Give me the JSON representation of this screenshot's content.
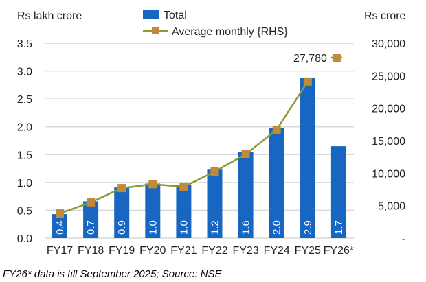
{
  "chart_data": {
    "type": "bar+line",
    "categories": [
      "FY17",
      "FY18",
      "FY19",
      "FY20",
      "FY21",
      "FY22",
      "FY23",
      "FY24",
      "FY25",
      "FY26*"
    ],
    "left_axis": {
      "label": "Rs lakh crore",
      "range": [
        0,
        3.5
      ],
      "ticks": [
        "0.0",
        "0.5",
        "1.0",
        "1.5",
        "2.0",
        "2.5",
        "3.0",
        "3.5"
      ]
    },
    "right_axis": {
      "label": "Rs crore",
      "range": [
        0,
        30000
      ],
      "ticks": [
        "-",
        "5,000",
        "10,000",
        "15,000",
        "20,000",
        "25,000",
        "30,000"
      ]
    },
    "series": [
      {
        "name": "Total",
        "type": "bar",
        "axis": "left",
        "color": "#1766C2",
        "values": [
          0.43,
          0.66,
          0.91,
          0.98,
          0.95,
          1.23,
          1.55,
          1.98,
          2.88,
          1.65
        ],
        "labels": [
          "0.4",
          "0.7",
          "0.9",
          "1.0",
          "1.0",
          "1.2",
          "1.6",
          "2.0",
          "2.9",
          "1.7"
        ]
      },
      {
        "name": "Average monthly {RHS}",
        "type": "line",
        "axis": "right",
        "color": "#8C9A2E",
        "marker_color": "#C08A3A",
        "values": [
          3800,
          5500,
          7700,
          8300,
          7900,
          10250,
          12900,
          16700,
          24100,
          27780
        ],
        "annotation": "27,780"
      }
    ],
    "grid": true,
    "legend": "top-center"
  },
  "footnote": "FY26* data is till September 2025; Source: NSE"
}
